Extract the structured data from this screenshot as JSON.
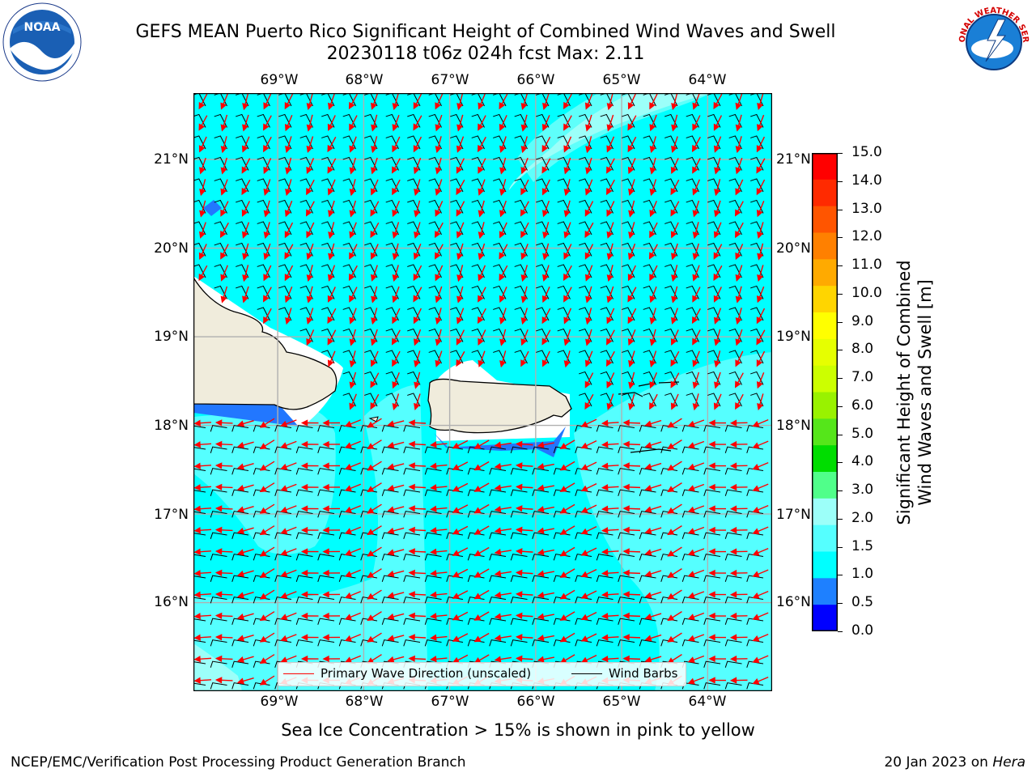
{
  "title": {
    "line1": "GEFS MEAN Puerto Rico Significant Height of Combined Wind Waves and Swell",
    "line2": "20230118 t06z 024h fcst   Max: 2.11"
  },
  "map": {
    "lon_labels": [
      "69°W",
      "68°W",
      "67°W",
      "66°W",
      "65°W",
      "64°W"
    ],
    "lat_labels": [
      "21°N",
      "20°N",
      "19°N",
      "18°N",
      "17°N",
      "16°N"
    ],
    "extent": {
      "lon": [
        -69.98,
        -63.25
      ],
      "lat": [
        15.0,
        21.75
      ]
    },
    "grid": true,
    "colors": {
      "ocean": "#00ffff",
      "land": "#f0ecdc",
      "swell_high": "#9cfff9",
      "swell_mid": "#55ffff",
      "swell_low": "#2277ff",
      "arrows": "#ff0000",
      "barbs": "#000000"
    }
  },
  "legend": {
    "items": [
      {
        "label": "Primary Wave Direction (unscaled)",
        "color": "#ff0000"
      },
      {
        "label": "Wind Barbs",
        "color": "#000000"
      }
    ]
  },
  "colorbar": {
    "label_line1": "Significant Height of Combined",
    "label_line2": "Wind Waves and Swell [m]",
    "ticks": [
      "15.0",
      "14.0",
      "13.0",
      "12.0",
      "11.0",
      "10.0",
      "9.0",
      "8.0",
      "7.0",
      "6.0",
      "5.0",
      "4.0",
      "3.0",
      "2.0",
      "1.5",
      "1.0",
      "0.5",
      "0.0"
    ],
    "colors": [
      "#ff0000",
      "#ff2a00",
      "#ff5500",
      "#ff8000",
      "#ffaa00",
      "#ffd500",
      "#ffff00",
      "#e6ff00",
      "#ccff00",
      "#99f200",
      "#55e61a",
      "#00dd00",
      "#50ff8a",
      "#9cfff9",
      "#55ffff",
      "#00ffff",
      "#1e80ff",
      "#0000ff"
    ]
  },
  "note": "Sea Ice Concentration > 15% is shown in pink to yellow",
  "credit": "NCEP/EMC/Verification Post Processing Product Generation Branch",
  "date_text": "20 Jan 2023 on ",
  "date_host": "Hera",
  "logos": {
    "noaa": "NOAA",
    "nws": "NATIONAL WEATHER SERVICE"
  }
}
